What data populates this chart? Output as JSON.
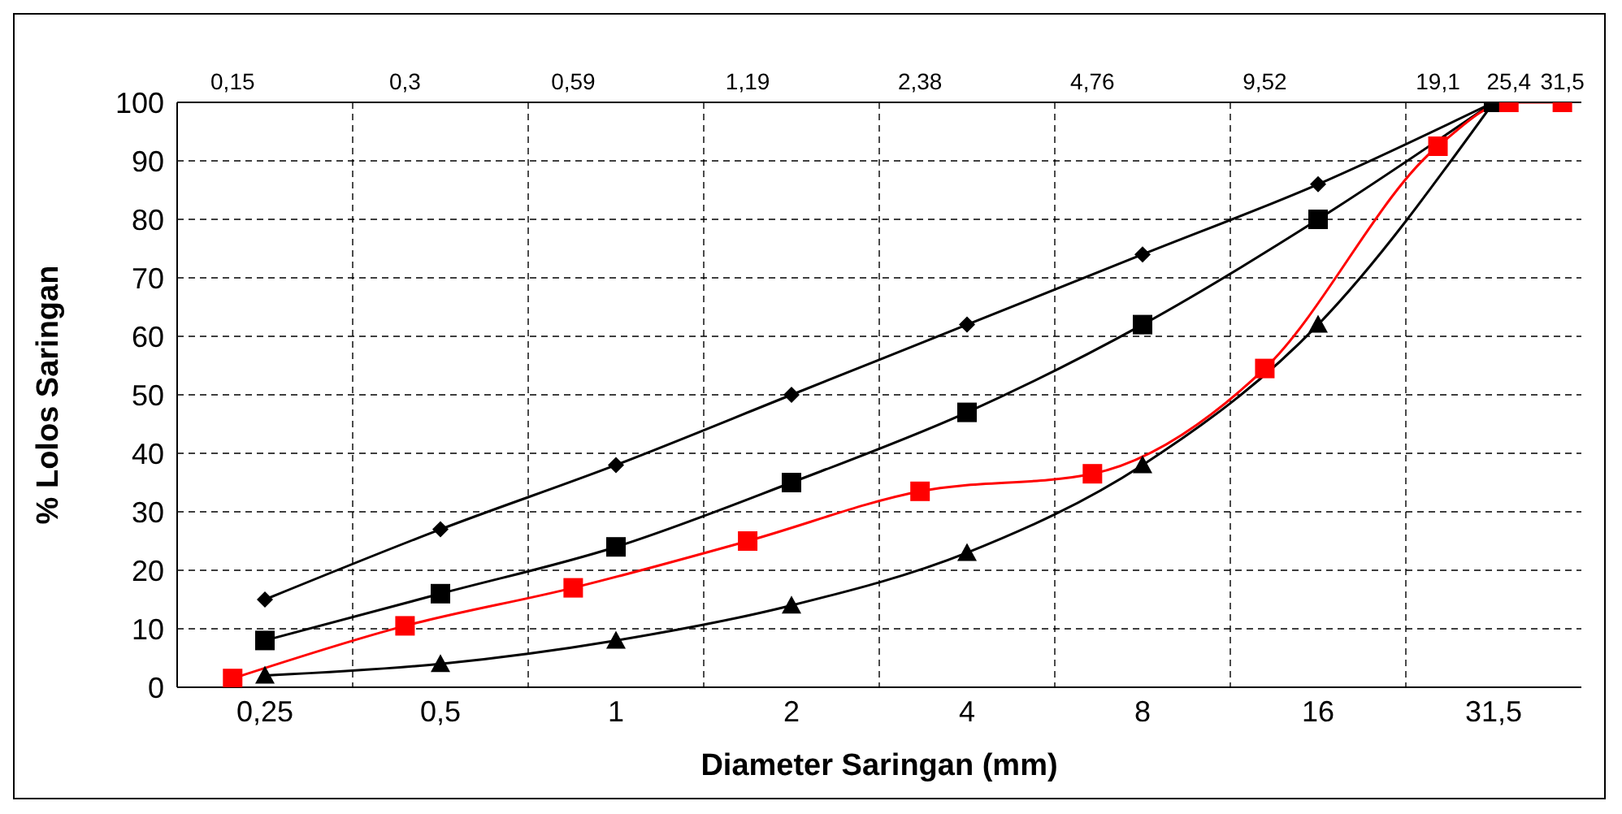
{
  "chart_data": {
    "type": "line",
    "xlabel": "Diameter Saringan (mm)",
    "ylabel": "% Lolos Saringan",
    "categories": [
      "0,25",
      "0,5",
      "1",
      "2",
      "4",
      "8",
      "16",
      "31,5"
    ],
    "ylim": [
      0,
      100
    ],
    "yticks": [
      0,
      10,
      20,
      30,
      40,
      50,
      60,
      70,
      80,
      90,
      100
    ],
    "grid": true,
    "log": "x2",
    "x2lim": [
      0.12,
      34
    ],
    "x2ticks": [
      {
        "value": 0.15,
        "label": "0,15"
      },
      {
        "value": 0.3,
        "label": "0,3"
      },
      {
        "value": 0.59,
        "label": "0,59"
      },
      {
        "value": 1.19,
        "label": "1,19"
      },
      {
        "value": 2.38,
        "label": "2,38"
      },
      {
        "value": 4.76,
        "label": "4,76"
      },
      {
        "value": 9.52,
        "label": "9,52"
      },
      {
        "value": 19.1,
        "label": "19,1"
      },
      {
        "value": 25.4,
        "label": "25,4"
      },
      {
        "value": 31.5,
        "label": "31,5"
      }
    ],
    "series": [
      {
        "color": "#000000",
        "marker": "diamond",
        "values": [
          15,
          27,
          38,
          50,
          62,
          74,
          86,
          100
        ]
      },
      {
        "color": "#000000",
        "marker": "square",
        "values": [
          8,
          16,
          24,
          35,
          47,
          62,
          80,
          100
        ]
      },
      {
        "color": "#000000",
        "marker": "triangle",
        "values": [
          2,
          4,
          8,
          14,
          23,
          38,
          62,
          100
        ]
      },
      {
        "color": "#ff0000",
        "marker": "square",
        "axis": "x2",
        "x": [
          0.15,
          0.3,
          0.59,
          1.19,
          2.38,
          4.76,
          9.52,
          19.1,
          25.4,
          31.5
        ],
        "values": [
          1.5,
          10.5,
          17,
          25,
          33.5,
          36.5,
          54.5,
          92.5,
          100,
          100
        ]
      }
    ]
  }
}
